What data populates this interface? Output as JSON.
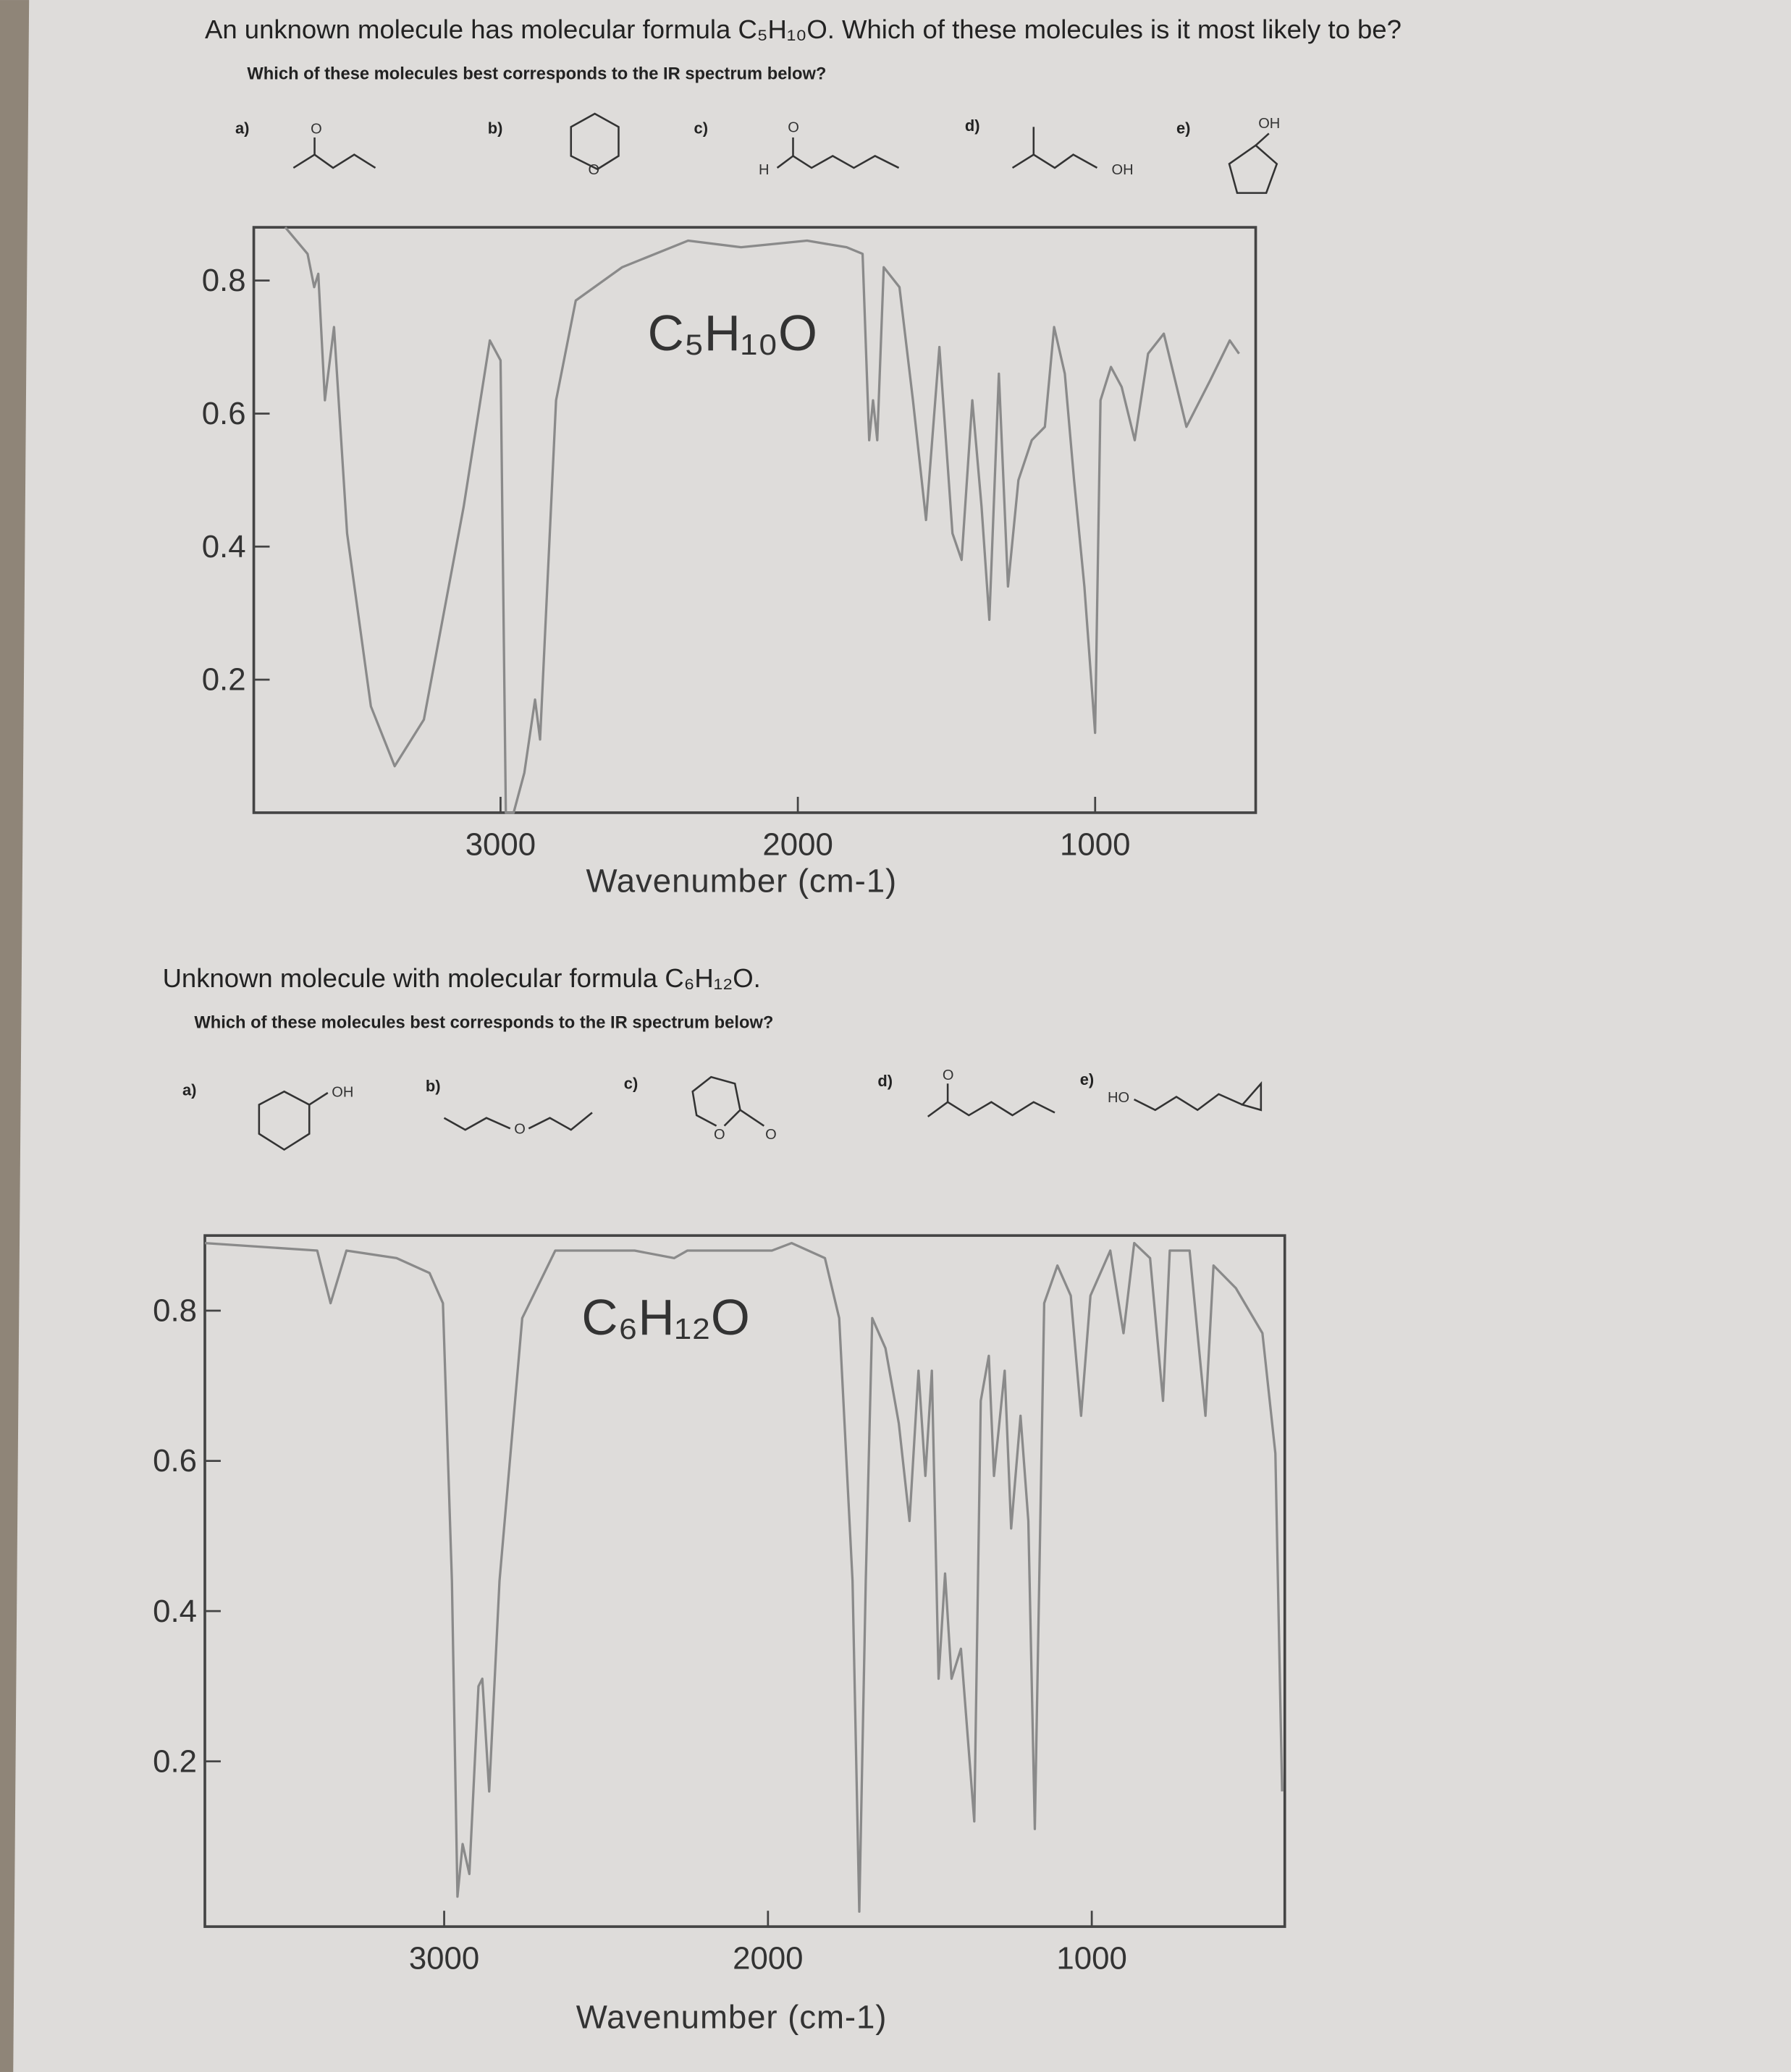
{
  "questions": [
    {
      "title": "An unknown molecule has molecular formula C₅H₁₀O. Which of these molecules is it most likely to be?",
      "prompt": "Which of these molecules best corresponds to the IR spectrum below?",
      "options": [
        {
          "label": "a)",
          "atoms": [
            "O"
          ]
        },
        {
          "label": "b)",
          "atoms": [
            "O"
          ]
        },
        {
          "label": "c)",
          "atoms": [
            "O",
            "H"
          ]
        },
        {
          "label": "d)",
          "atoms": [
            "OH"
          ]
        },
        {
          "label": "e)",
          "atoms": [
            "OH"
          ]
        }
      ]
    },
    {
      "title": "Unknown molecule with molecular formula C₆H₁₂O.",
      "prompt": "Which of these molecules best corresponds to the IR spectrum below?",
      "options": [
        {
          "label": "a)",
          "atoms": [
            "OH"
          ]
        },
        {
          "label": "b)",
          "atoms": [
            "O"
          ]
        },
        {
          "label": "c)",
          "atoms": [
            "O",
            "O"
          ]
        },
        {
          "label": "d)",
          "atoms": [
            "O"
          ]
        },
        {
          "label": "e)",
          "atoms": [
            "HO"
          ]
        }
      ]
    }
  ],
  "chart_data": [
    {
      "type": "line",
      "annotation": "C₅H₁₀O",
      "xlabel": "Wavenumber (cm-1)",
      "color": "#8a8a8a",
      "xlim": [
        3830,
        460
      ],
      "ylim": [
        0,
        0.88
      ],
      "xticks": [
        3000,
        2000,
        1000
      ],
      "yticks": [
        0.2,
        0.4,
        0.6,
        0.8
      ],
      "x": [
        3724,
        3649,
        3627,
        3613,
        3591,
        3560,
        3516,
        3436,
        3356,
        3258,
        3124,
        3036,
        3000,
        2982,
        2956,
        2920,
        2884,
        2867,
        2813,
        2747,
        2591,
        2369,
        2191,
        1969,
        1836,
        1782,
        1760,
        1747,
        1733,
        1711,
        1658,
        1613,
        1569,
        1524,
        1480,
        1449,
        1413,
        1382,
        1356,
        1324,
        1293,
        1258,
        1213,
        1169,
        1138,
        1102,
        1071,
        1036,
        1000,
        982,
        947,
        911,
        867,
        822,
        769,
        693,
        613,
        547,
        516
      ],
      "values": [
        0.88,
        0.84,
        0.79,
        0.81,
        0.62,
        0.73,
        0.42,
        0.16,
        0.07,
        0.14,
        0.46,
        0.71,
        0.68,
        0,
        0,
        0.06,
        0.17,
        0.11,
        0.62,
        0.77,
        0.82,
        0.86,
        0.85,
        0.86,
        0.85,
        0.84,
        0.56,
        0.62,
        0.56,
        0.82,
        0.79,
        0.62,
        0.44,
        0.7,
        0.42,
        0.38,
        0.62,
        0.46,
        0.29,
        0.66,
        0.34,
        0.5,
        0.56,
        0.58,
        0.73,
        0.66,
        0.5,
        0.34,
        0.12,
        0.62,
        0.67,
        0.64,
        0.56,
        0.69,
        0.72,
        0.58,
        0.65,
        0.71,
        0.69
      ]
    },
    {
      "type": "line",
      "annotation": "C₆H₁₂O",
      "xlabel": "Wavenumber (cm-1)",
      "color": "#8a8a8a",
      "xlim": [
        3739,
        404
      ],
      "ylim": [
        -0.02,
        0.9
      ],
      "xticks": [
        3000,
        2000,
        1000
      ],
      "yticks": [
        0.2,
        0.4,
        0.6,
        0.8
      ],
      "x": [
        3739,
        3392,
        3351,
        3302,
        3147,
        3045,
        3004,
        2976,
        2959,
        2943,
        2922,
        2894,
        2882,
        2861,
        2829,
        2759,
        2657,
        2412,
        2290,
        2249,
        1988,
        1927,
        1824,
        1780,
        1739,
        1718,
        1698,
        1678,
        1637,
        1596,
        1563,
        1535,
        1514,
        1494,
        1473,
        1453,
        1433,
        1404,
        1363,
        1343,
        1318,
        1302,
        1269,
        1249,
        1220,
        1196,
        1176,
        1147,
        1106,
        1065,
        1033,
        1004,
        943,
        902,
        869,
        820,
        780,
        759,
        698,
        649,
        624,
        555,
        473,
        433,
        412
      ],
      "values": [
        0.89,
        0.88,
        0.81,
        0.88,
        0.87,
        0.85,
        0.81,
        0.44,
        0.02,
        0.09,
        0.05,
        0.3,
        0.31,
        0.16,
        0.44,
        0.79,
        0.88,
        0.88,
        0.87,
        0.88,
        0.88,
        0.89,
        0.87,
        0.79,
        0.44,
        0,
        0.44,
        0.79,
        0.75,
        0.65,
        0.52,
        0.72,
        0.58,
        0.72,
        0.31,
        0.45,
        0.31,
        0.35,
        0.12,
        0.68,
        0.74,
        0.58,
        0.72,
        0.51,
        0.66,
        0.52,
        0.11,
        0.81,
        0.86,
        0.82,
        0.66,
        0.82,
        0.88,
        0.77,
        0.89,
        0.87,
        0.68,
        0.88,
        0.88,
        0.66,
        0.86,
        0.83,
        0.77,
        0.61,
        0.16
      ]
    }
  ]
}
